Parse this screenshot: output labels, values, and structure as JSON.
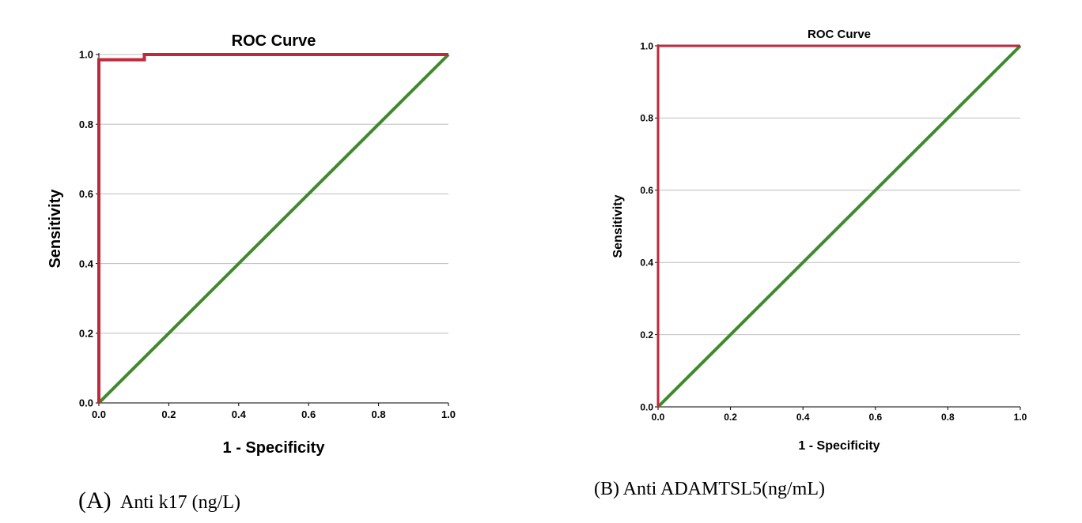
{
  "chart_data": [
    {
      "type": "line",
      "title": "ROC Curve",
      "xlabel": "1 - Specificity",
      "ylabel": "Sensitivity",
      "xlim": [
        0,
        1
      ],
      "ylim": [
        0,
        1
      ],
      "x_ticks": [
        "0.0",
        "0.2",
        "0.4",
        "0.6",
        "0.8",
        "1.0"
      ],
      "y_ticks": [
        "0.0",
        "0.2",
        "0.4",
        "0.6",
        "0.8",
        "1.0"
      ],
      "grid": "horizontal",
      "caption_letter": "(A)",
      "caption_text": "Anti k17 (ng/L)",
      "series": [
        {
          "color": "#c0283c",
          "points": [
            [
              0,
              0
            ],
            [
              0,
              0.985
            ],
            [
              0.13,
              0.985
            ],
            [
              0.13,
              1.0
            ],
            [
              1.0,
              1.0
            ]
          ]
        },
        {
          "color": "#3f8a2e",
          "points": [
            [
              0,
              0
            ],
            [
              1,
              1
            ]
          ]
        }
      ]
    },
    {
      "type": "line",
      "title": "ROC Curve",
      "xlabel": "1 - Specificity",
      "ylabel": "Sensitivity",
      "xlim": [
        0,
        1
      ],
      "ylim": [
        0,
        1
      ],
      "x_ticks": [
        "0.0",
        "0.2",
        "0.4",
        "0.6",
        "0.8",
        "1.0"
      ],
      "y_ticks": [
        "0.0",
        "0.2",
        "0.4",
        "0.6",
        "0.8",
        "1.0"
      ],
      "grid": "horizontal",
      "caption_text": "(B) Anti ADAMTSL5(ng/mL)",
      "series": [
        {
          "color": "#c0283c",
          "points": [
            [
              0,
              0
            ],
            [
              0,
              1.0
            ],
            [
              1.0,
              1.0
            ]
          ]
        },
        {
          "color": "#3f8a2e",
          "points": [
            [
              0,
              0
            ],
            [
              1,
              1
            ]
          ]
        }
      ]
    }
  ]
}
